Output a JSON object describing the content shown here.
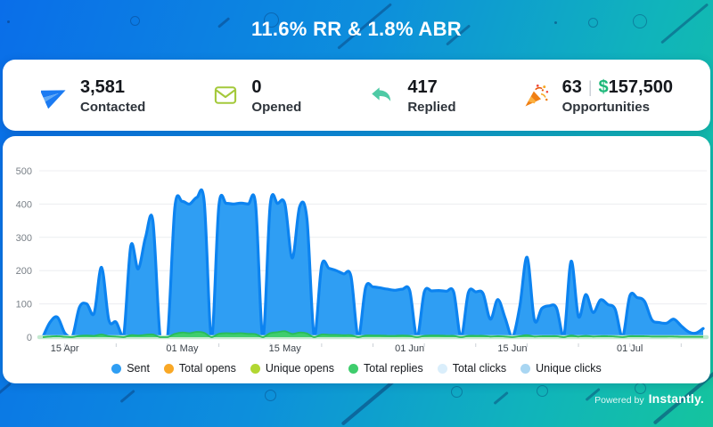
{
  "header": {
    "title": "11.6% RR & 1.8% ABR"
  },
  "stats": [
    {
      "icon": "paper-plane-icon",
      "value": "3,581",
      "label": "Contacted"
    },
    {
      "icon": "envelope-icon",
      "value": "0",
      "label": "Opened"
    },
    {
      "icon": "reply-arrow-icon",
      "value": "417",
      "label": "Replied"
    },
    {
      "icon": "party-popper-icon",
      "value": "63",
      "divider": "|",
      "currency": "$",
      "amount": "157,500",
      "label": "Opportunities"
    }
  ],
  "footer": {
    "powered_by": "Powered by",
    "brand": "Instantly."
  },
  "chart_data": {
    "type": "area",
    "title": "",
    "grid": true,
    "legend_position": "bottom",
    "ylim": [
      0,
      500
    ],
    "yticks": [
      0,
      100,
      200,
      300,
      400,
      500
    ],
    "x": [
      "12 Apr",
      "13 Apr",
      "14 Apr",
      "15 Apr",
      "16 Apr",
      "17 Apr",
      "18 Apr",
      "19 Apr",
      "20 Apr",
      "21 Apr",
      "22 Apr",
      "23 Apr",
      "24 Apr",
      "25 Apr",
      "26 Apr",
      "27 Apr",
      "28 Apr",
      "29 Apr",
      "30 Apr",
      "01 May",
      "02 May",
      "03 May",
      "04 May",
      "05 May",
      "06 May",
      "07 May",
      "08 May",
      "09 May",
      "10 May",
      "11 May",
      "12 May",
      "13 May",
      "14 May",
      "15 May",
      "16 May",
      "17 May",
      "18 May",
      "19 May",
      "20 May",
      "21 May",
      "22 May",
      "23 May",
      "24 May",
      "25 May",
      "26 May",
      "27 May",
      "28 May",
      "29 May",
      "30 May",
      "31 May",
      "01 Jun",
      "02 Jun",
      "03 Jun",
      "04 Jun",
      "05 Jun",
      "06 Jun",
      "07 Jun",
      "08 Jun",
      "09 Jun",
      "10 Jun",
      "11 Jun",
      "12 Jun",
      "13 Jun",
      "14 Jun",
      "15 Jun",
      "16 Jun",
      "17 Jun",
      "18 Jun",
      "19 Jun",
      "20 Jun",
      "21 Jun",
      "22 Jun",
      "23 Jun",
      "24 Jun",
      "25 Jun",
      "26 Jun",
      "27 Jun",
      "28 Jun",
      "29 Jun",
      "30 Jun",
      "01 Jul",
      "02 Jul",
      "03 Jul",
      "04 Jul",
      "05 Jul",
      "06 Jul",
      "07 Jul",
      "08 Jul",
      "09 Jul",
      "10 Jul",
      "11 Jul"
    ],
    "xticks": [
      {
        "label": "15 Apr",
        "index": 3
      },
      {
        "label": "01 May",
        "index": 19
      },
      {
        "label": "15 May",
        "index": 33
      },
      {
        "label": "01 Jun",
        "index": 50
      },
      {
        "label": "15 Jun",
        "index": 64
      },
      {
        "label": "01 Jul",
        "index": 80
      }
    ],
    "series": [
      {
        "name": "Sent",
        "color": "#2f9ef3",
        "stroke": "#0c83f0",
        "values": [
          0,
          45,
          60,
          12,
          0,
          90,
          100,
          72,
          210,
          52,
          45,
          0,
          275,
          205,
          300,
          350,
          0,
          0,
          390,
          408,
          400,
          420,
          408,
          0,
          395,
          402,
          400,
          403,
          400,
          398,
          0,
          398,
          402,
          400,
          238,
          392,
          355,
          0,
          215,
          207,
          200,
          190,
          183,
          0,
          150,
          151,
          148,
          144,
          141,
          144,
          140,
          0,
          136,
          139,
          140,
          138,
          135,
          0,
          134,
          136,
          131,
          54,
          113,
          58,
          0,
          92,
          240,
          52,
          86,
          94,
          88,
          0,
          228,
          62,
          128,
          74,
          112,
          98,
          84,
          0,
          124,
          119,
          108,
          52,
          44,
          42,
          54,
          34,
          16,
          12,
          26
        ]
      },
      {
        "name": "Total opens",
        "color": "#f9a826",
        "all_values": 0
      },
      {
        "name": "Unique opens",
        "color": "#b2d732",
        "all_values": 0
      },
      {
        "name": "Total replies",
        "color": "#3fcd6d",
        "stroke": "#29bd58",
        "values": [
          0,
          2,
          3,
          1,
          0,
          4,
          5,
          4,
          8,
          3,
          2,
          0,
          6,
          5,
          7,
          8,
          0,
          0,
          10,
          14,
          12,
          16,
          13,
          0,
          10,
          12,
          11,
          12,
          10,
          9,
          0,
          12,
          15,
          18,
          10,
          14,
          11,
          0,
          8,
          7,
          7,
          6,
          6,
          0,
          5,
          5,
          5,
          4,
          4,
          5,
          4,
          0,
          4,
          5,
          5,
          4,
          4,
          0,
          4,
          4,
          4,
          2,
          3,
          2,
          0,
          3,
          6,
          2,
          3,
          3,
          3,
          0,
          5,
          2,
          4,
          2,
          3,
          3,
          2,
          0,
          3,
          3,
          3,
          2,
          2,
          2,
          2,
          1,
          1,
          1,
          1
        ]
      },
      {
        "name": "Total clicks",
        "color": "#daeefb",
        "all_values": 0
      },
      {
        "name": "Unique clicks",
        "color": "#a9d6f2",
        "all_values": 0
      }
    ]
  }
}
